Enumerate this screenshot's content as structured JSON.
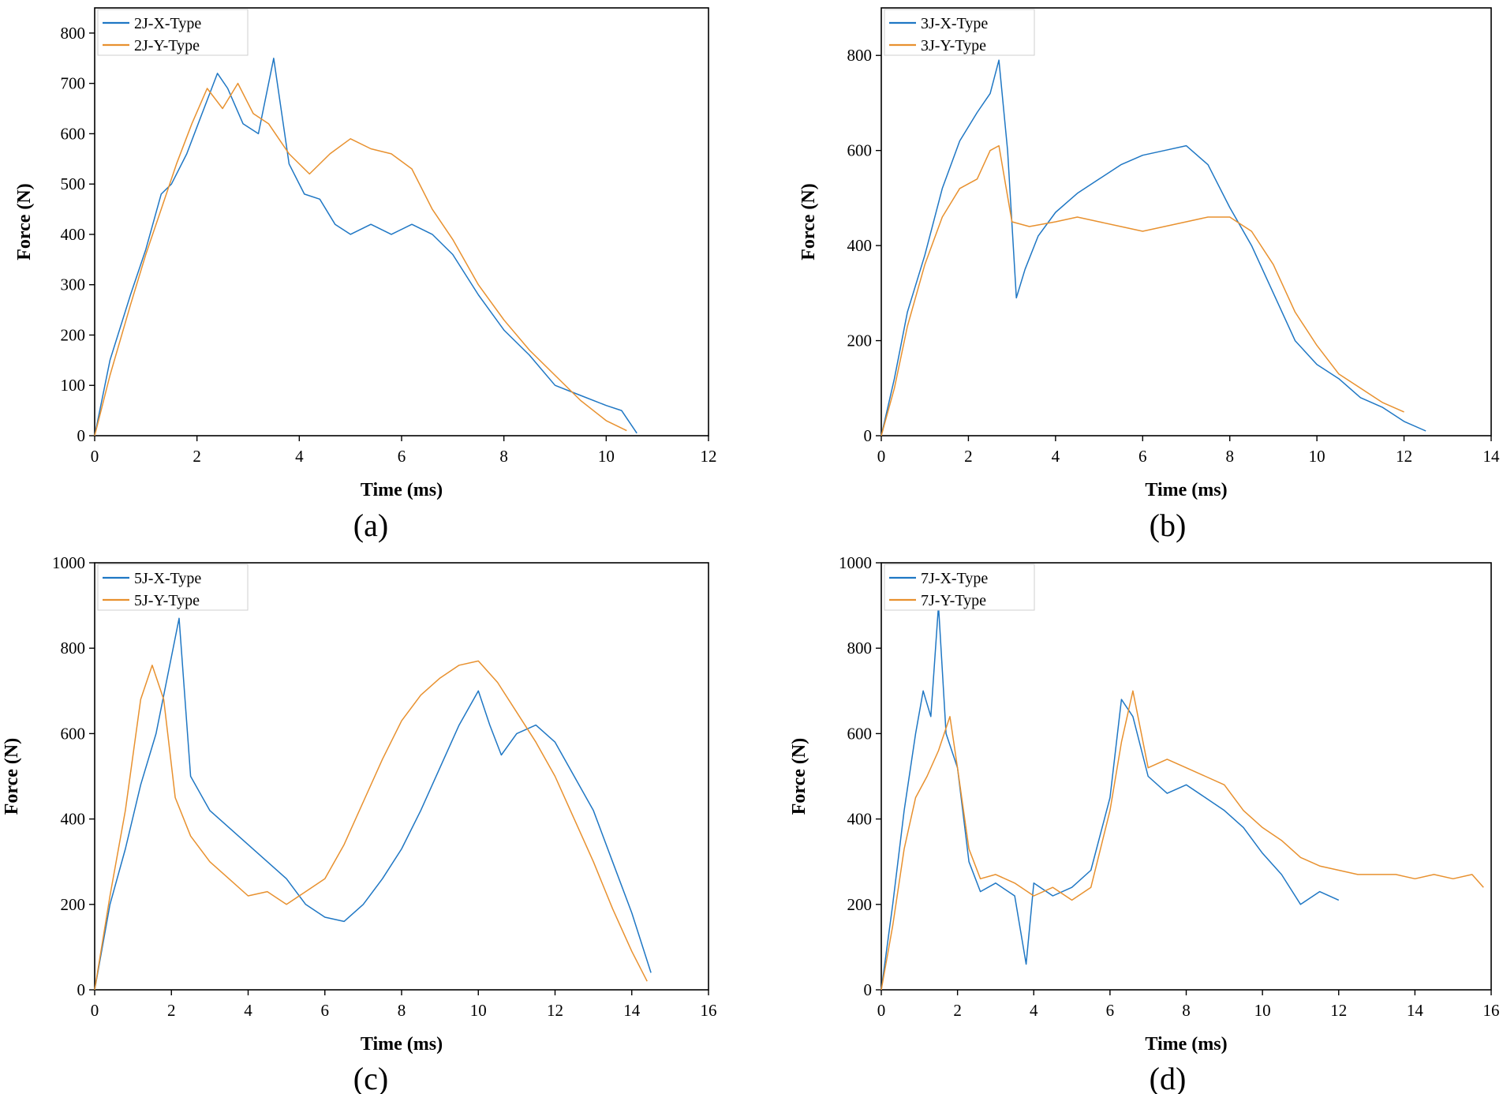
{
  "figure": {
    "colors": {
      "x_type": "#1f77c4",
      "y_type": "#e8912f"
    }
  },
  "chart_data": [
    {
      "type": "line",
      "caption": "(a)",
      "xlabel": "Time (ms)",
      "ylabel": "Force (N)",
      "xlim": [
        0,
        12
      ],
      "ylim": [
        0,
        850
      ],
      "xticks": [
        0,
        2,
        4,
        6,
        8,
        10,
        12
      ],
      "yticks": [
        0,
        100,
        200,
        300,
        400,
        500,
        600,
        700,
        800
      ],
      "legend_position": "top-left",
      "series": [
        {
          "name": "2J-X-Type",
          "color": "#1f77c4",
          "x": [
            0,
            0.3,
            0.7,
            1.0,
            1.3,
            1.5,
            1.8,
            2.1,
            2.4,
            2.6,
            2.9,
            3.2,
            3.5,
            3.8,
            4.1,
            4.4,
            4.7,
            5.0,
            5.4,
            5.8,
            6.2,
            6.6,
            7.0,
            7.5,
            8.0,
            8.5,
            9.0,
            9.5,
            10.0,
            10.3,
            10.6
          ],
          "y": [
            0,
            150,
            280,
            370,
            480,
            500,
            560,
            640,
            720,
            690,
            620,
            600,
            750,
            540,
            480,
            470,
            420,
            400,
            420,
            400,
            420,
            400,
            360,
            280,
            210,
            160,
            100,
            80,
            60,
            50,
            5
          ]
        },
        {
          "name": "2J-Y-Type",
          "color": "#e8912f",
          "x": [
            0,
            0.3,
            0.7,
            1.0,
            1.3,
            1.6,
            1.9,
            2.2,
            2.5,
            2.8,
            3.1,
            3.4,
            3.8,
            4.2,
            4.6,
            5.0,
            5.4,
            5.8,
            6.2,
            6.6,
            7.0,
            7.5,
            8.0,
            8.5,
            9.0,
            9.5,
            10.0,
            10.4
          ],
          "y": [
            0,
            120,
            260,
            360,
            450,
            540,
            620,
            690,
            650,
            700,
            640,
            620,
            560,
            520,
            560,
            590,
            570,
            560,
            530,
            450,
            390,
            300,
            230,
            170,
            120,
            70,
            30,
            10
          ]
        }
      ]
    },
    {
      "type": "line",
      "caption": "(b)",
      "xlabel": "Time (ms)",
      "ylabel": "Force (N)",
      "xlim": [
        0,
        14
      ],
      "ylim": [
        0,
        900
      ],
      "xticks": [
        0,
        2,
        4,
        6,
        8,
        10,
        12,
        14
      ],
      "yticks": [
        0,
        200,
        400,
        600,
        800
      ],
      "legend_position": "top-left",
      "series": [
        {
          "name": "3J-X-Type",
          "color": "#1f77c4",
          "x": [
            0,
            0.3,
            0.6,
            1.0,
            1.4,
            1.8,
            2.2,
            2.5,
            2.7,
            2.9,
            3.1,
            3.3,
            3.6,
            4.0,
            4.5,
            5.0,
            5.5,
            6.0,
            6.5,
            7.0,
            7.5,
            8.0,
            8.5,
            9.0,
            9.5,
            10.0,
            10.5,
            11.0,
            11.5,
            12.0,
            12.5
          ],
          "y": [
            0,
            120,
            260,
            380,
            520,
            620,
            680,
            720,
            790,
            600,
            290,
            350,
            420,
            470,
            510,
            540,
            570,
            590,
            600,
            610,
            570,
            480,
            400,
            300,
            200,
            150,
            120,
            80,
            60,
            30,
            10
          ]
        },
        {
          "name": "3J-Y-Type",
          "color": "#e8912f",
          "x": [
            0,
            0.3,
            0.6,
            1.0,
            1.4,
            1.8,
            2.2,
            2.5,
            2.7,
            3.0,
            3.4,
            4.0,
            4.5,
            5.0,
            5.5,
            6.0,
            6.5,
            7.0,
            7.5,
            8.0,
            8.5,
            9.0,
            9.5,
            10.0,
            10.5,
            11.0,
            11.5,
            12.0
          ],
          "y": [
            0,
            100,
            230,
            360,
            460,
            520,
            540,
            600,
            610,
            450,
            440,
            450,
            460,
            450,
            440,
            430,
            440,
            450,
            460,
            460,
            430,
            360,
            260,
            190,
            130,
            100,
            70,
            50
          ]
        }
      ]
    },
    {
      "type": "line",
      "caption": "(c)",
      "xlabel": "Time (ms)",
      "ylabel": "Force (N)",
      "xlim": [
        0,
        16
      ],
      "ylim": [
        0,
        1000
      ],
      "xticks": [
        0,
        2,
        4,
        6,
        8,
        10,
        12,
        14,
        16
      ],
      "yticks": [
        0,
        200,
        400,
        600,
        800,
        1000
      ],
      "legend_position": "top-left",
      "series": [
        {
          "name": "5J-X-Type",
          "color": "#1f77c4",
          "x": [
            0,
            0.4,
            0.8,
            1.2,
            1.6,
            2.0,
            2.2,
            2.5,
            3.0,
            3.5,
            4.0,
            4.5,
            5.0,
            5.5,
            6.0,
            6.5,
            7.0,
            7.5,
            8.0,
            8.5,
            9.0,
            9.5,
            10.0,
            10.3,
            10.6,
            11.0,
            11.5,
            12.0,
            12.5,
            13.0,
            13.5,
            14.0,
            14.5
          ],
          "y": [
            0,
            200,
            330,
            480,
            600,
            780,
            870,
            500,
            420,
            380,
            340,
            300,
            260,
            200,
            170,
            160,
            200,
            260,
            330,
            420,
            520,
            620,
            700,
            620,
            550,
            600,
            620,
            580,
            500,
            420,
            300,
            180,
            40
          ]
        },
        {
          "name": "5J-Y-Type",
          "color": "#e8912f",
          "x": [
            0,
            0.4,
            0.8,
            1.2,
            1.5,
            1.8,
            2.1,
            2.5,
            3.0,
            3.5,
            4.0,
            4.5,
            5.0,
            5.5,
            6.0,
            6.5,
            7.0,
            7.5,
            8.0,
            8.5,
            9.0,
            9.5,
            10.0,
            10.5,
            11.0,
            11.5,
            12.0,
            12.5,
            13.0,
            13.5,
            14.0,
            14.4
          ],
          "y": [
            0,
            220,
            420,
            680,
            760,
            680,
            450,
            360,
            300,
            260,
            220,
            230,
            200,
            230,
            260,
            340,
            440,
            540,
            630,
            690,
            730,
            760,
            770,
            720,
            650,
            580,
            500,
            400,
            300,
            190,
            90,
            20
          ]
        }
      ]
    },
    {
      "type": "line",
      "caption": "(d)",
      "xlabel": "Time (ms)",
      "ylabel": "Force (N)",
      "xlim": [
        0,
        16
      ],
      "ylim": [
        0,
        1000
      ],
      "xticks": [
        0,
        2,
        4,
        6,
        8,
        10,
        12,
        14,
        16
      ],
      "yticks": [
        0,
        200,
        400,
        600,
        800,
        1000
      ],
      "legend_position": "top-left",
      "series": [
        {
          "name": "7J-X-Type",
          "color": "#1f77c4",
          "x": [
            0,
            0.3,
            0.6,
            0.9,
            1.1,
            1.3,
            1.5,
            1.7,
            2.0,
            2.3,
            2.6,
            3.0,
            3.5,
            3.8,
            4.0,
            4.5,
            5.0,
            5.5,
            6.0,
            6.3,
            6.6,
            7.0,
            7.5,
            8.0,
            8.5,
            9.0,
            9.5,
            10.0,
            10.5,
            11.0,
            11.5,
            12.0
          ],
          "y": [
            0,
            200,
            420,
            600,
            700,
            640,
            900,
            600,
            520,
            300,
            230,
            250,
            220,
            60,
            250,
            220,
            240,
            280,
            450,
            680,
            640,
            500,
            460,
            480,
            450,
            420,
            380,
            320,
            270,
            200,
            230,
            210
          ]
        },
        {
          "name": "7J-Y-Type",
          "color": "#e8912f",
          "x": [
            0,
            0.3,
            0.6,
            0.9,
            1.2,
            1.5,
            1.8,
            2.0,
            2.3,
            2.6,
            3.0,
            3.5,
            4.0,
            4.5,
            5.0,
            5.5,
            6.0,
            6.3,
            6.6,
            7.0,
            7.5,
            8.0,
            8.5,
            9.0,
            9.5,
            10.0,
            10.5,
            11.0,
            11.5,
            12.0,
            12.5,
            13.0,
            13.5,
            14.0,
            14.5,
            15.0,
            15.5,
            15.8
          ],
          "y": [
            0,
            150,
            330,
            450,
            500,
            560,
            640,
            520,
            330,
            260,
            270,
            250,
            220,
            240,
            210,
            240,
            420,
            580,
            700,
            520,
            540,
            520,
            500,
            480,
            420,
            380,
            350,
            310,
            290,
            280,
            270,
            270,
            270,
            260,
            270,
            260,
            270,
            240
          ]
        }
      ]
    }
  ]
}
